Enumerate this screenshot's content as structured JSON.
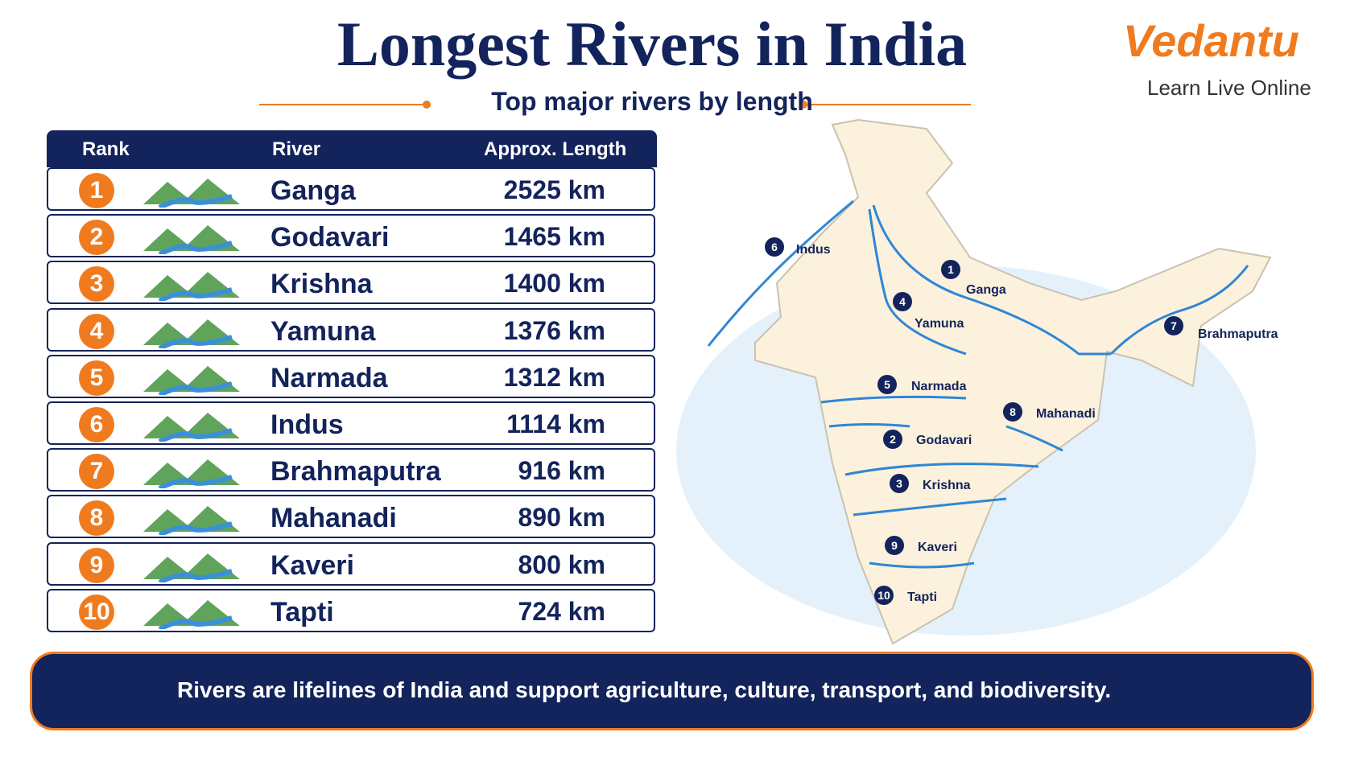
{
  "header": {
    "title": "Longest Rivers in India",
    "subtitle": "Top major rivers by length"
  },
  "logo": {
    "brand": "Vedantu",
    "tagline": "Learn Live Online"
  },
  "table": {
    "columns": [
      "Rank",
      "River",
      "Approx. Length"
    ],
    "rows": [
      [
        "1",
        "Ganga",
        "2525 km"
      ],
      [
        "2",
        "Godavari",
        "1465 km"
      ],
      [
        "3",
        "Krishna",
        "1400 km"
      ],
      [
        "4",
        "Yamuna",
        "1376 km"
      ],
      [
        "5",
        "Narmada",
        "1312 km"
      ],
      [
        "6",
        "Indus",
        "1114 km"
      ],
      [
        "7",
        "Brahmaputra",
        "916 km"
      ],
      [
        "8",
        "Mahanadi",
        "890 km"
      ],
      [
        "9",
        "Kaveri",
        "800 km"
      ],
      [
        "10",
        "Tapti",
        "724 km"
      ]
    ]
  },
  "map": {
    "labels": [
      [
        "1",
        "Ganga"
      ],
      [
        "4",
        "Yamuna"
      ],
      [
        "6",
        "Indus"
      ],
      [
        "7",
        "Brahmaputra"
      ],
      [
        "5",
        "Narmada"
      ],
      [
        "8",
        "Mahanadi"
      ],
      [
        "2",
        "Godavari"
      ],
      [
        "3",
        "Krishna"
      ],
      [
        "9",
        "Kaveri"
      ],
      [
        "10",
        "Tapti"
      ]
    ]
  },
  "footer": {
    "text": "Rivers are lifelines of India and support agriculture, culture, transport, and biodiversity."
  }
}
